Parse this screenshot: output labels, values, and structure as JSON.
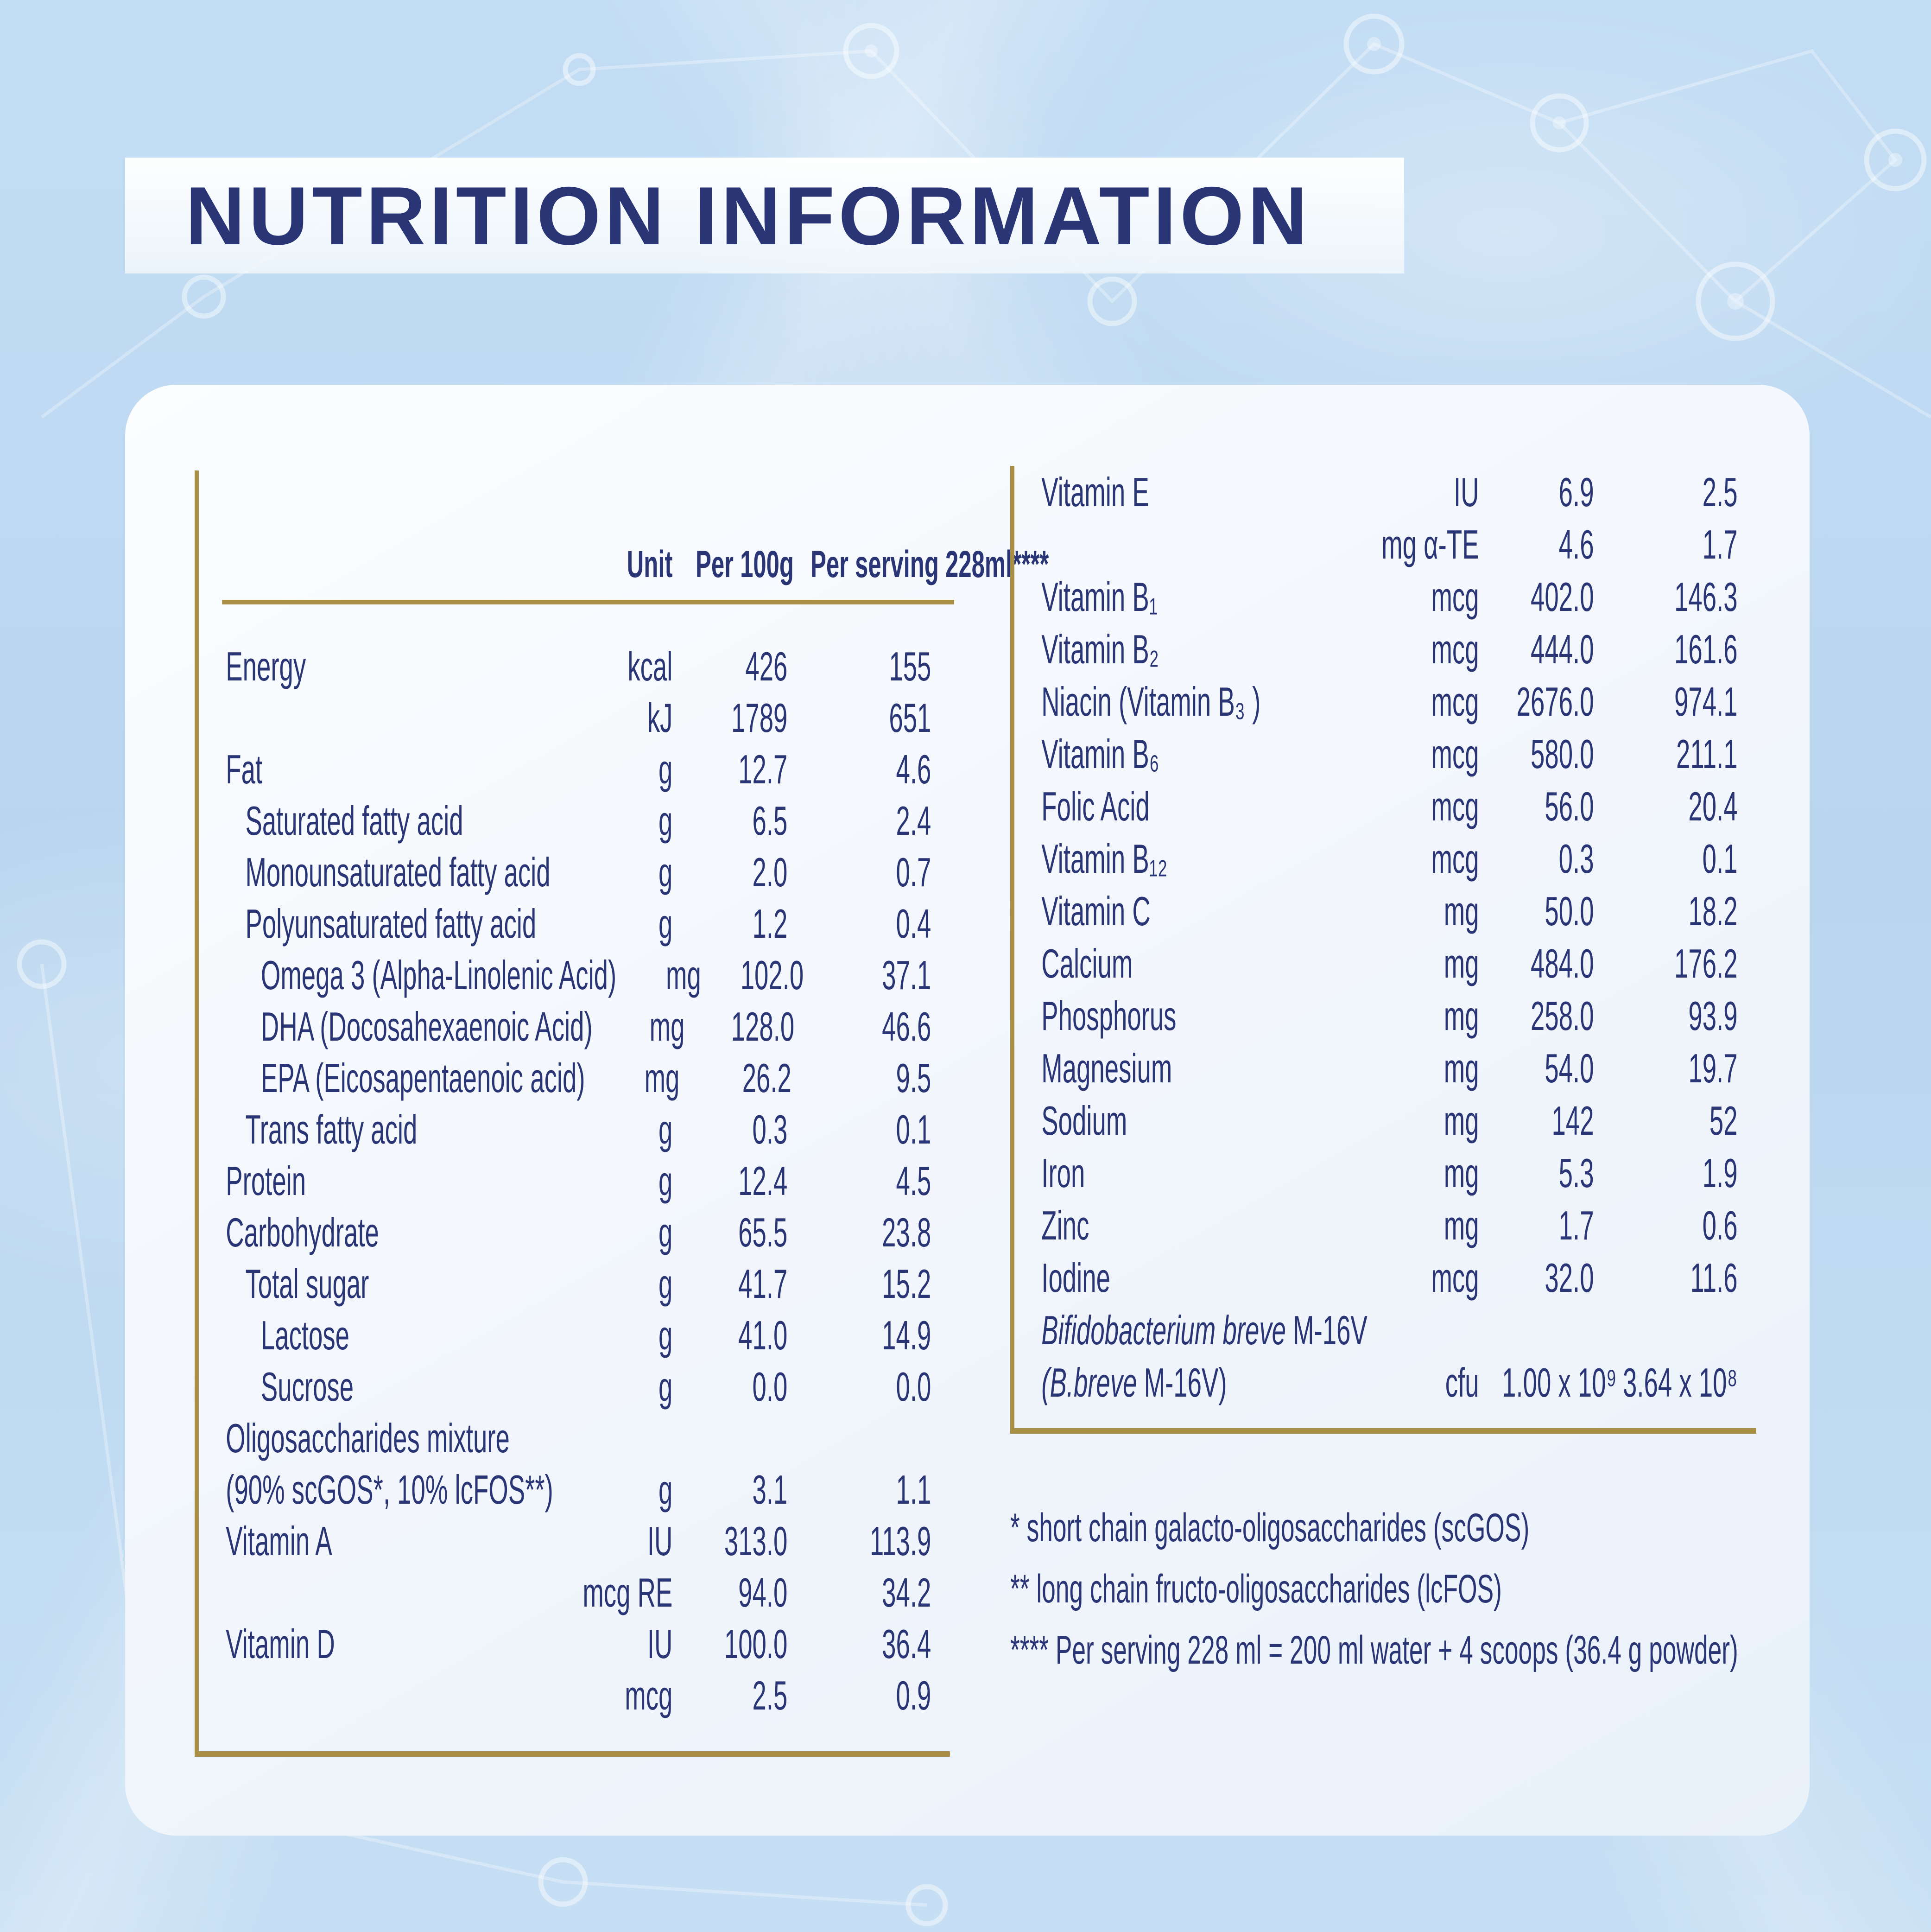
{
  "title": "NUTRITION INFORMATION",
  "colors": {
    "navy": "#2a3576",
    "gold": "#a98f45",
    "background_blue": "#bdd8f0"
  },
  "table_left": {
    "header": {
      "unit": "Unit",
      "per_100g": "Per\n100g",
      "per_serving": "Per\nserving\n228ml****"
    },
    "rows": [
      {
        "label": "Energy",
        "indent": 0,
        "unit": "kcal",
        "per_100g": "426",
        "per_serving": "155"
      },
      {
        "label": "",
        "indent": 0,
        "unit": "kJ",
        "per_100g": "1789",
        "per_serving": "651"
      },
      {
        "label": "Fat",
        "indent": 0,
        "unit": "g",
        "per_100g": "12.7",
        "per_serving": "4.6"
      },
      {
        "label": "Saturated fatty acid",
        "indent": 1,
        "unit": "g",
        "per_100g": "6.5",
        "per_serving": "2.4"
      },
      {
        "label": "Monounsaturated fatty acid",
        "indent": 1,
        "unit": "g",
        "per_100g": "2.0",
        "per_serving": "0.7"
      },
      {
        "label": "Polyunsaturated fatty acid",
        "indent": 1,
        "unit": "g",
        "per_100g": "1.2",
        "per_serving": "0.4"
      },
      {
        "label": "Omega 3 (Alpha-Linolenic Acid)",
        "indent": 2,
        "unit": "mg",
        "per_100g": "102.0",
        "per_serving": "37.1"
      },
      {
        "label": "DHA (Docosahexaenoic Acid)",
        "indent": 2,
        "unit": "mg",
        "per_100g": "128.0",
        "per_serving": "46.6"
      },
      {
        "label": "EPA (Eicosapentaenoic acid)",
        "indent": 2,
        "unit": "mg",
        "per_100g": "26.2",
        "per_serving": "9.5"
      },
      {
        "label": "Trans fatty acid",
        "indent": 1,
        "unit": "g",
        "per_100g": "0.3",
        "per_serving": "0.1"
      },
      {
        "label": "Protein",
        "indent": 0,
        "unit": "g",
        "per_100g": "12.4",
        "per_serving": "4.5"
      },
      {
        "label": "Carbohydrate",
        "indent": 0,
        "unit": "g",
        "per_100g": "65.5",
        "per_serving": "23.8"
      },
      {
        "label": "Total sugar",
        "indent": 1,
        "unit": "g",
        "per_100g": "41.7",
        "per_serving": "15.2"
      },
      {
        "label": "Lactose",
        "indent": 2,
        "unit": "g",
        "per_100g": "41.0",
        "per_serving": "14.9"
      },
      {
        "label": "Sucrose",
        "indent": 2,
        "unit": "g",
        "per_100g": "0.0",
        "per_serving": "0.0"
      },
      {
        "label": "Oligosaccharides mixture",
        "label2": "(90% scGOS*, 10% lcFOS**)",
        "indent": 0,
        "unit": "g",
        "per_100g": "3.1",
        "per_serving": "1.1"
      },
      {
        "label": "Vitamin A",
        "indent": 0,
        "unit": "IU",
        "per_100g": "313.0",
        "per_serving": "113.9"
      },
      {
        "label": "",
        "indent": 0,
        "unit": "mcg RE",
        "per_100g": "94.0",
        "per_serving": "34.2"
      },
      {
        "label": "Vitamin D",
        "indent": 0,
        "unit": "IU",
        "per_100g": "100.0",
        "per_serving": "36.4"
      },
      {
        "label": "",
        "indent": 0,
        "unit": "mcg",
        "per_100g": "2.5",
        "per_serving": "0.9"
      }
    ]
  },
  "table_right": {
    "rows": [
      {
        "label": "Vitamin E",
        "indent": 0,
        "unit": "IU",
        "per_100g": "6.9",
        "per_serving": "2.5"
      },
      {
        "label": "",
        "indent": 0,
        "unit": "mg α-TE",
        "per_100g": "4.6",
        "per_serving": "1.7"
      },
      {
        "label": "Vitamin B₁",
        "indent": 0,
        "unit": "mcg",
        "per_100g": "402.0",
        "per_serving": "146.3"
      },
      {
        "label": "Vitamin B₂",
        "indent": 0,
        "unit": "mcg",
        "per_100g": "444.0",
        "per_serving": "161.6"
      },
      {
        "label": "Niacin (Vitamin B₃ )",
        "indent": 0,
        "unit": "mcg",
        "per_100g": "2676.0",
        "per_serving": "974.1"
      },
      {
        "label": "Vitamin B₆",
        "indent": 0,
        "unit": "mcg",
        "per_100g": "580.0",
        "per_serving": "211.1"
      },
      {
        "label": "Folic Acid",
        "indent": 0,
        "unit": "mcg",
        "per_100g": "56.0",
        "per_serving": "20.4"
      },
      {
        "label": "Vitamin B₁₂",
        "indent": 0,
        "unit": "mcg",
        "per_100g": "0.3",
        "per_serving": "0.1"
      },
      {
        "label": "Vitamin C",
        "indent": 0,
        "unit": "mg",
        "per_100g": "50.0",
        "per_serving": "18.2"
      },
      {
        "label": "Calcium",
        "indent": 0,
        "unit": "mg",
        "per_100g": "484.0",
        "per_serving": "176.2"
      },
      {
        "label": "Phosphorus",
        "indent": 0,
        "unit": "mg",
        "per_100g": "258.0",
        "per_serving": "93.9"
      },
      {
        "label": "Magnesium",
        "indent": 0,
        "unit": "mg",
        "per_100g": "54.0",
        "per_serving": "19.7"
      },
      {
        "label": "Sodium",
        "indent": 0,
        "unit": "mg",
        "per_100g": "142",
        "per_serving": "52"
      },
      {
        "label": "Iron",
        "indent": 0,
        "unit": "mg",
        "per_100g": "5.3",
        "per_serving": "1.9"
      },
      {
        "label": "Zinc",
        "indent": 0,
        "unit": "mg",
        "per_100g": "1.7",
        "per_serving": "0.6"
      },
      {
        "label": "Iodine",
        "indent": 0,
        "unit": "mcg",
        "per_100g": "32.0",
        "per_serving": "11.6"
      }
    ],
    "probiotic": {
      "line1_italic": "Bifidobacterium breve",
      "line1_regular": " M-16V",
      "line2_italic": "(B.breve",
      "line2_regular": " M-16V)",
      "unit": "cfu",
      "per_100g": "1.00 x 10⁹",
      "per_serving": "3.64 x 10⁸"
    }
  },
  "footnotes": [
    "* short chain galacto-oligosaccharides (scGOS)",
    "** long chain fructo-oligosaccharides (lcFOS)",
    "**** Per serving 228 ml = 200 ml water + 4 scoops (36.4 g powder)"
  ]
}
